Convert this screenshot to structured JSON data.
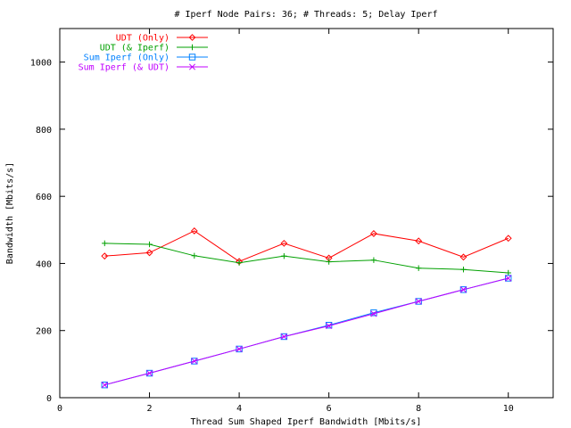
{
  "chart_data": {
    "type": "line",
    "title": "# Iperf Node Pairs: 36; # Threads: 5; Delay Iperf",
    "xlabel": "Thread Sum Shaped Iperf Bandwidth [Mbits/s]",
    "ylabel": "Bandwidth [Mbits/s]",
    "xlim": [
      0,
      11
    ],
    "ylim": [
      0,
      1100
    ],
    "xticks": [
      0,
      2,
      4,
      6,
      8,
      10
    ],
    "yticks": [
      0,
      200,
      400,
      600,
      800,
      1000
    ],
    "grid": false,
    "legend_position": "top-left",
    "x": [
      1,
      2,
      3,
      4,
      5,
      6,
      7,
      8,
      9,
      10
    ],
    "series": [
      {
        "name": "UDT (Only)",
        "color": "#ff0000",
        "marker": "diamond",
        "values": [
          422,
          432,
          497,
          406,
          460,
          416,
          489,
          467,
          419,
          475
        ]
      },
      {
        "name": "UDT (& Iperf)",
        "color": "#00a000",
        "marker": "plus",
        "values": [
          460,
          457,
          423,
          402,
          422,
          405,
          410,
          386,
          382,
          372
        ]
      },
      {
        "name": "Sum Iperf (Only)",
        "color": "#0080ff",
        "marker": "square",
        "values": [
          38,
          73,
          109,
          145,
          182,
          216,
          253,
          287,
          322,
          356
        ]
      },
      {
        "name": "Sum Iperf (& UDT)",
        "color": "#c000ff",
        "marker": "cross",
        "values": [
          38,
          73,
          109,
          145,
          182,
          214,
          250,
          287,
          322,
          356
        ]
      }
    ]
  }
}
